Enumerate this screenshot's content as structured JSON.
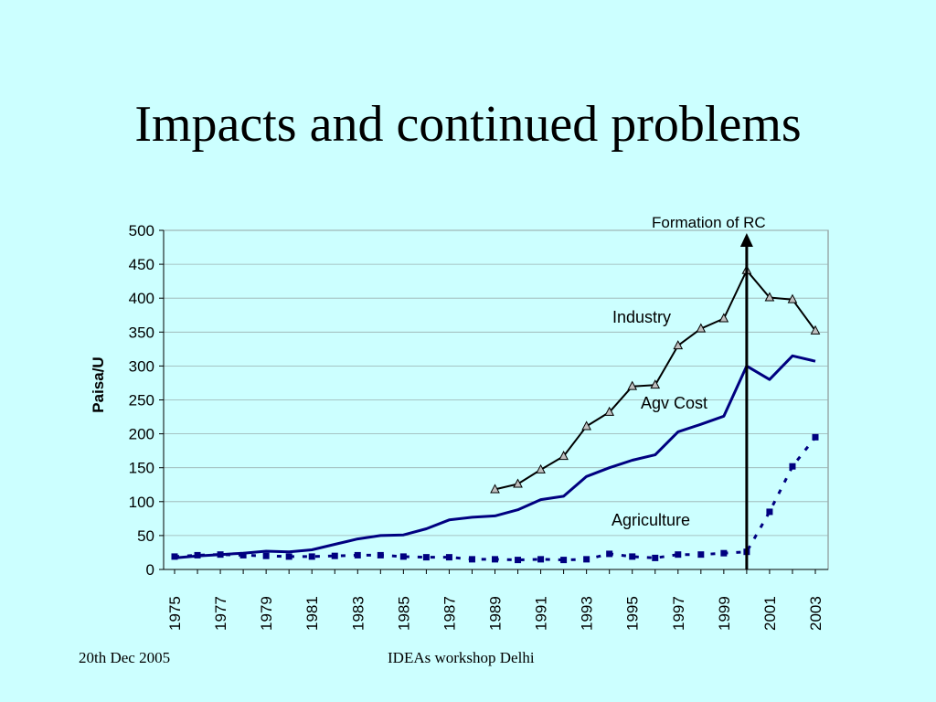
{
  "slide": {
    "title": "Impacts and continued problems",
    "footer_left": "20th Dec 2005",
    "footer_center": "IDEAs workshop Delhi"
  },
  "chart_data": {
    "type": "line",
    "title": "",
    "xlabel": "",
    "ylabel": "Paisa/U",
    "ylim": [
      0,
      500
    ],
    "yticks": [
      0,
      50,
      100,
      150,
      200,
      250,
      300,
      350,
      400,
      450,
      500
    ],
    "x": [
      1975,
      1976,
      1977,
      1978,
      1979,
      1980,
      1981,
      1982,
      1983,
      1984,
      1985,
      1986,
      1987,
      1988,
      1989,
      1990,
      1991,
      1992,
      1993,
      1994,
      1995,
      1996,
      1997,
      1998,
      1999,
      2000,
      2001,
      2002,
      2003
    ],
    "xtick_labels": [
      "1975",
      "1977",
      "1979",
      "1981",
      "1983",
      "1985",
      "1987",
      "1989",
      "1991",
      "1993",
      "1995",
      "1997",
      "1999",
      "2001",
      "2003"
    ],
    "grid": true,
    "series": [
      {
        "name": "Industry",
        "color": "#000000",
        "marker": "triangle",
        "values": [
          null,
          null,
          null,
          null,
          null,
          null,
          null,
          null,
          null,
          null,
          null,
          null,
          null,
          null,
          118,
          126,
          147,
          167,
          211,
          232,
          270,
          272,
          330,
          355,
          370,
          441,
          401,
          398,
          352
        ]
      },
      {
        "name": "Agv Cost",
        "color": "#000080",
        "marker": "none",
        "values": [
          17,
          20,
          22,
          24,
          27,
          26,
          29,
          37,
          45,
          50,
          51,
          60,
          73,
          77,
          79,
          88,
          103,
          108,
          137,
          150,
          161,
          169,
          203,
          214,
          226,
          300,
          280,
          315,
          307
        ]
      },
      {
        "name": "Agriculture",
        "color": "#000080",
        "marker": "square",
        "dashed": true,
        "values": [
          19,
          21,
          22,
          21,
          20,
          19,
          19,
          20,
          21,
          21,
          19,
          18,
          18,
          15,
          15,
          14,
          15,
          14,
          15,
          23,
          19,
          17,
          22,
          22,
          24,
          26,
          85,
          152,
          195
        ]
      }
    ],
    "annotations": {
      "formation": {
        "label": "Formation of RC",
        "year": 2000
      }
    }
  }
}
